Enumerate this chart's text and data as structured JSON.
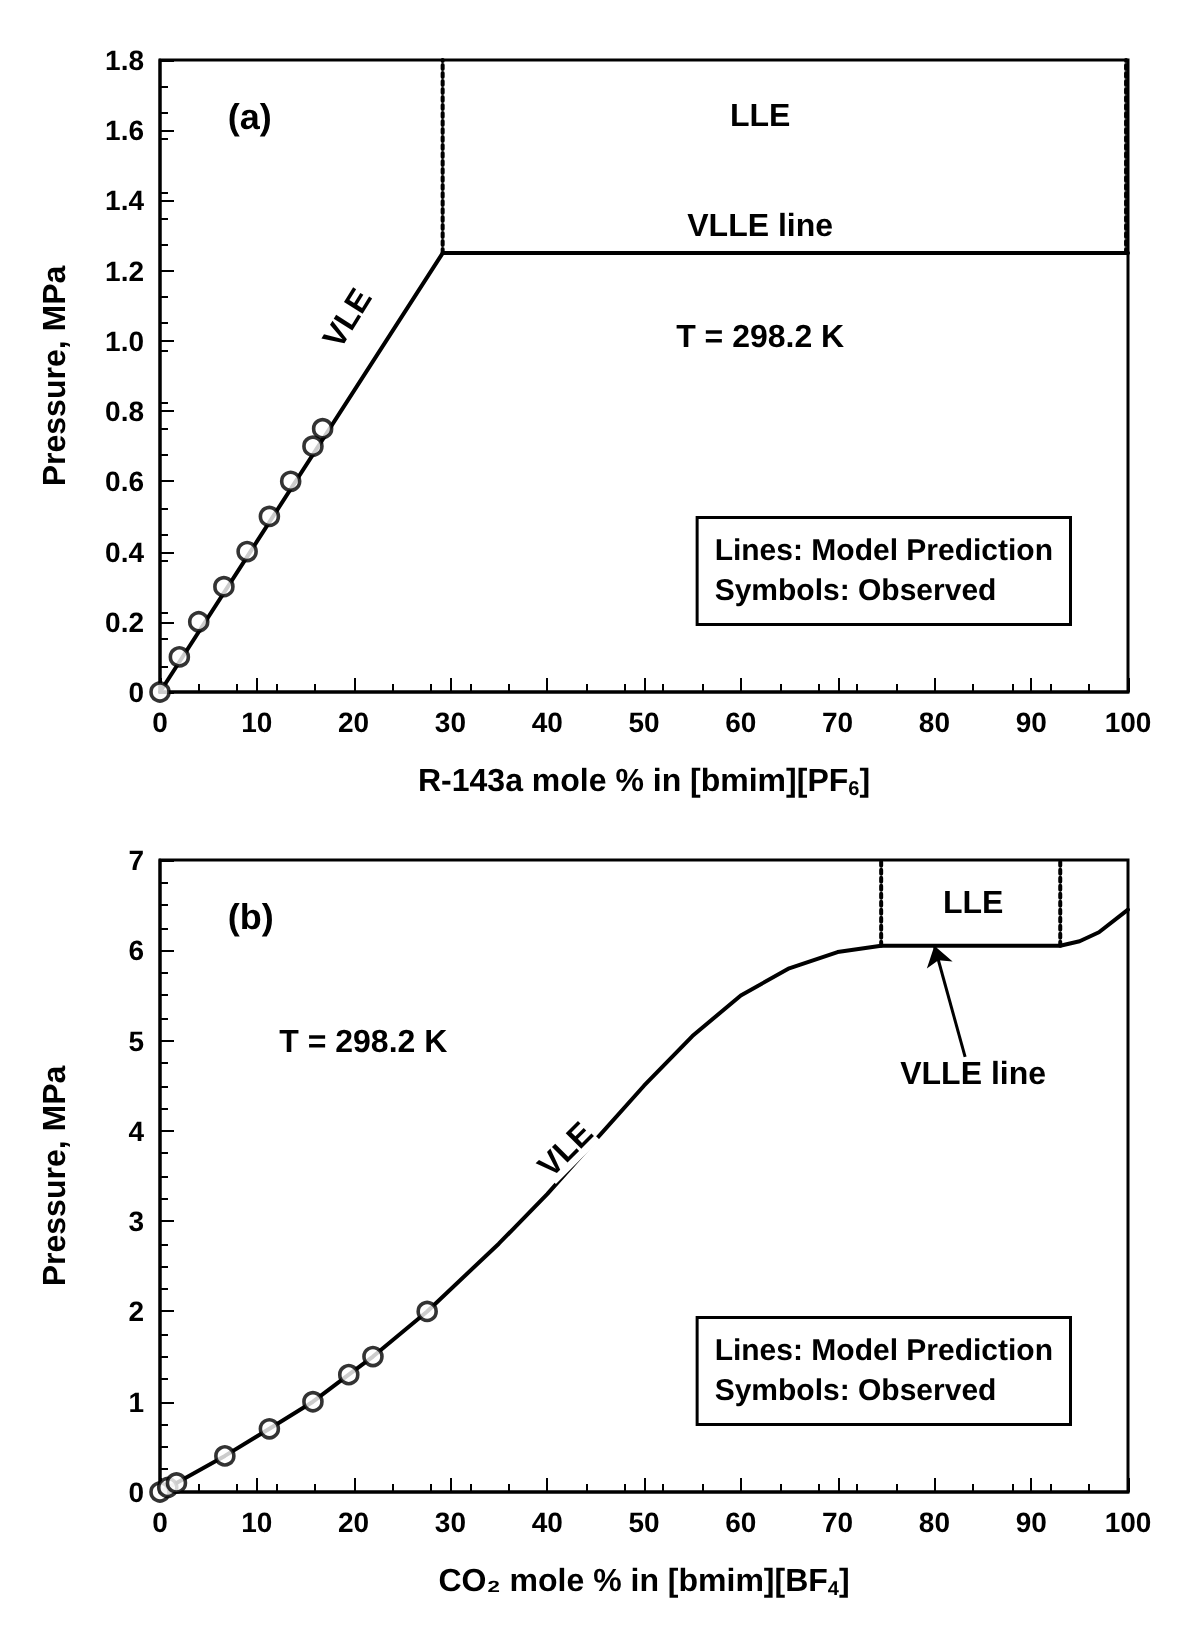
{
  "chart_data": [
    {
      "type": "line",
      "xlabel": "R-143a mole % in [bmim][PF$_{6}$]",
      "ylabel": "Pressure, MPa",
      "xlim": [
        0,
        100
      ],
      "xticks": [
        0,
        10,
        20,
        30,
        40,
        50,
        60,
        70,
        80,
        90,
        100
      ],
      "ylim": [
        0,
        1.8
      ],
      "yticks": [
        0,
        0.2,
        0.4,
        0.6,
        0.8,
        {
          "value": 1,
          "label": "1.0"
        },
        1.2,
        1.4,
        1.6,
        1.8
      ],
      "grid": false,
      "series": [
        {
          "color": "#000000",
          "line_style": "solid",
          "marker": "none",
          "x": [
            0,
            29.2,
            100
          ],
          "values": [
            0,
            1.25,
            1.25
          ]
        },
        {
          "color": "#000000",
          "line_style": "dotted",
          "marker": "none",
          "x": [
            29.2,
            29.2
          ],
          "values": [
            1.25,
            1.8
          ]
        },
        {
          "color": "#000000",
          "line_style": "dotted",
          "marker": "none",
          "x": [
            99.8,
            99.8
          ],
          "values": [
            1.25,
            1.8
          ]
        },
        {
          "type": "scatter",
          "color": "#000000",
          "marker": "circle",
          "x": [
            0,
            2,
            4,
            6.6,
            9,
            11.3,
            13.5,
            15.8,
            16.8
          ],
          "values": [
            0,
            0.1,
            0.2,
            0.3,
            0.4,
            0.5,
            0.6,
            0.7,
            0.75
          ]
        }
      ],
      "annotations": [
        "(a)",
        "LLE",
        "VLLE line",
        "VLE",
        "T = 298.2 K",
        "Lines: Model Prediction",
        "Symbols: Observed"
      ]
    },
    {
      "type": "line",
      "xlabel": "CO₂ mole % in [bmim][BF$_{4}$]",
      "ylabel": "Pressure, MPa",
      "xlim": [
        0,
        100
      ],
      "xticks": [
        0,
        10,
        20,
        30,
        40,
        50,
        60,
        70,
        80,
        90,
        100
      ],
      "ylim": [
        0,
        7
      ],
      "yticks": [
        0,
        1,
        2,
        3,
        4,
        5,
        6,
        7
      ],
      "grid": false,
      "series": [
        {
          "color": "#000000",
          "line_style": "solid",
          "marker": "none",
          "x": [
            0,
            1.7,
            6.7,
            11.3,
            15.8,
            19.5,
            22,
            27.6,
            35,
            40,
            45,
            50,
            55,
            60,
            65,
            70,
            74.5,
            93,
            95,
            97,
            100
          ],
          "values": [
            0,
            0.1,
            0.4,
            0.7,
            1.0,
            1.3,
            1.5,
            2.0,
            2.75,
            3.3,
            3.9,
            4.5,
            5.05,
            5.5,
            5.8,
            5.98,
            6.05,
            6.05,
            6.1,
            6.2,
            6.45
          ]
        },
        {
          "color": "#000000",
          "line_style": "dotted",
          "marker": "none",
          "x": [
            74.5,
            74.5
          ],
          "values": [
            6.05,
            7
          ]
        },
        {
          "color": "#000000",
          "line_style": "dotted",
          "marker": "none",
          "x": [
            93,
            93
          ],
          "values": [
            6.05,
            7
          ]
        },
        {
          "type": "scatter",
          "color": "#000000",
          "marker": "circle",
          "x": [
            0,
            0.8,
            1.7,
            6.7,
            11.3,
            15.8,
            19.5,
            22,
            27.6
          ],
          "values": [
            0,
            0.05,
            0.1,
            0.4,
            0.7,
            1.0,
            1.3,
            1.5,
            2.0
          ]
        }
      ],
      "annotations": [
        "(b)",
        "LLE",
        {
          "text": "VLLE line",
          "x": 80,
          "y": 6.05
        },
        "VLE",
        "T = 298.2 K",
        "Lines: Model Prediction",
        "Symbols: Observed"
      ]
    }
  ]
}
